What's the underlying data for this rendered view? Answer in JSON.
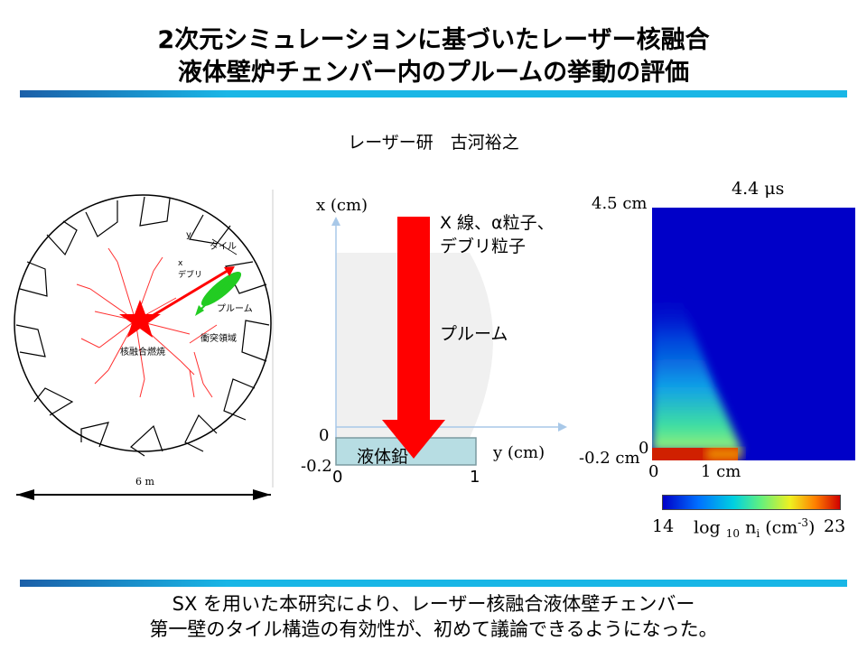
{
  "title": {
    "line1": "2次元シミュレーションに基づいたレーザー核融合",
    "line2": "液体壁炉チェンバー内のプルームの挙動の評価"
  },
  "author": "レーザー研　古河裕之",
  "reactor_diagram": {
    "axis_y": "y",
    "tile_label": "タイル",
    "axis_x": "x",
    "debris_label": "デブリ",
    "plume_label": "プルーム",
    "collision_label": "衝突領域",
    "fusion_label": "核融合燃焼",
    "dimension": "6 m"
  },
  "schematic": {
    "x_axis_label": "x (cm)",
    "radiation_label_1": "X 線、α粒子、",
    "radiation_label_2": "デブリ粒子",
    "plume_label": "プルーム",
    "x_tick_0": "0",
    "x_tick_neg": "-0.2",
    "liquid_label": "液体鉛",
    "y_axis_label": "y (cm)",
    "y_tick_0": "0",
    "y_tick_1": "1"
  },
  "simulation": {
    "time": "4.4 μs",
    "top_label": "4.5 cm",
    "zero_label": "0",
    "neg_label": "-0.2 cm",
    "y_tick_0": "0",
    "y_tick_1": "1 cm",
    "cbar_min": "14",
    "cbar_label": "log",
    "cbar_sub": "10",
    "cbar_var": "n",
    "cbar_var_sub": "i",
    "cbar_unit_a": "(cm",
    "cbar_unit_sup": "-3",
    "cbar_unit_b": ")",
    "cbar_max": "23"
  },
  "conclusion": {
    "line1": "SX を用いた本研究により、レーザー核融合液体壁チェンバー",
    "line2": "第一壁のタイル構造の有効性が、初めて議論できるようになった。"
  },
  "colors": {
    "accent_bar": "#19b6e6",
    "arrow_red": "#ff0000",
    "liquid": "#b7dde3",
    "plume_bg": "#f0f0f0",
    "sim_bg": "#0000c8"
  }
}
